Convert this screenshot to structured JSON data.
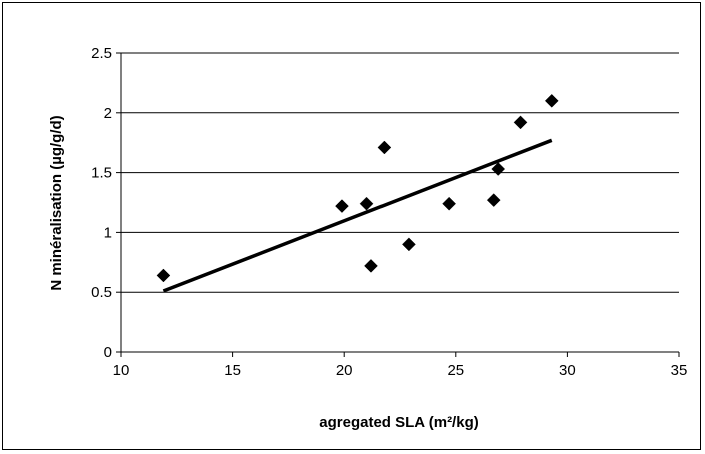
{
  "chart_data": {
    "type": "scatter",
    "title": "",
    "xlabel": "agregated SLA (m²/kg)",
    "ylabel": "N minéralisation (µg/g/d)",
    "xlim": [
      10,
      35
    ],
    "ylim": [
      0,
      2.5
    ],
    "x_ticks": [
      "10",
      "15",
      "20",
      "25",
      "30",
      "35"
    ],
    "y_ticks": [
      "0",
      "0.5",
      "1",
      "1.5",
      "2",
      "2.5"
    ],
    "grid": "horizontal",
    "legend": "none",
    "marker": "diamond",
    "marker_color": "#000000",
    "points": [
      {
        "x": 11.9,
        "y": 0.64
      },
      {
        "x": 19.9,
        "y": 1.22
      },
      {
        "x": 21.0,
        "y": 1.24
      },
      {
        "x": 21.2,
        "y": 0.72
      },
      {
        "x": 21.8,
        "y": 1.71
      },
      {
        "x": 22.9,
        "y": 0.9
      },
      {
        "x": 24.7,
        "y": 1.24
      },
      {
        "x": 26.7,
        "y": 1.27
      },
      {
        "x": 26.9,
        "y": 1.53
      },
      {
        "x": 27.9,
        "y": 1.92
      },
      {
        "x": 29.3,
        "y": 2.1
      }
    ],
    "trendline": {
      "x": [
        11.9,
        29.3
      ],
      "y": [
        0.51,
        1.77
      ]
    }
  }
}
